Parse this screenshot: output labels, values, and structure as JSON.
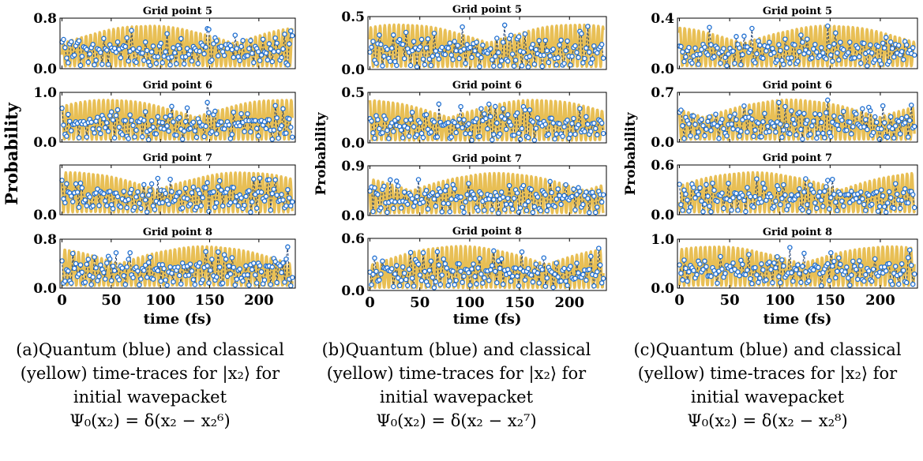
{
  "colors": {
    "quantum": "#1f6fd1",
    "classical": "#e8bf55",
    "marker_fill": "#ffffff"
  },
  "figure": {
    "y_label": "Probability",
    "x_label": "time (fs)",
    "x_ticks": [
      "0",
      "50",
      "100",
      "150",
      "200"
    ],
    "xlim": [
      -2,
      237
    ]
  },
  "panels": [
    {
      "caption": {
        "line1": "(a)Quantum (blue) and classical",
        "line2_pre": "(yellow) time-traces for ",
        "ket": "|x₂⟩",
        "line2_post": " for",
        "line3": "initial wavepacket",
        "equation": "Ψ₀(x₂) = δ(x₂ − x₂⁶)"
      },
      "subplots": [
        {
          "title": "Grid point 5",
          "ylim": [
            0.0,
            0.8
          ],
          "y_ticks": [
            "0.0",
            "0.8"
          ]
        },
        {
          "title": "Grid point 6",
          "ylim": [
            0.0,
            1.0
          ],
          "y_ticks": [
            "0.0",
            "1.0"
          ]
        },
        {
          "title": "Grid point 7",
          "ylim": [
            0.0,
            0.5
          ],
          "y_ticks": [
            "0.0"
          ]
        },
        {
          "title": "Grid point 8",
          "ylim": [
            0.0,
            0.8
          ],
          "y_ticks": [
            "0.0",
            "0.8"
          ]
        }
      ]
    },
    {
      "caption": {
        "line1": "(b)Quantum (blue) and classical",
        "line2_pre": "(yellow) time-traces for ",
        "ket": "|x₂⟩",
        "line2_post": " for",
        "line3": "initial wavepacket",
        "equation": "Ψ₀(x₂) = δ(x₂ − x₂⁷)"
      },
      "subplots": [
        {
          "title": "Grid point 5",
          "ylim": [
            0.0,
            0.5
          ],
          "y_ticks": [
            "0.0",
            "0.5"
          ]
        },
        {
          "title": "Grid point 6",
          "ylim": [
            0.0,
            0.5
          ],
          "y_ticks": [
            "0.0",
            "0.5"
          ]
        },
        {
          "title": "Grid point 7",
          "ylim": [
            0.0,
            0.9
          ],
          "y_ticks": [
            "0.0",
            "0.9"
          ]
        },
        {
          "title": "Grid point 8",
          "ylim": [
            0.0,
            0.6
          ],
          "y_ticks": [
            "0.0",
            "0.6"
          ]
        }
      ]
    },
    {
      "caption": {
        "line1": "(c)Quantum (blue) and classical",
        "line2_pre": "(yellow) time-traces for ",
        "ket": "|x₂⟩",
        "line2_post": " for",
        "line3": "initial wavepacket",
        "equation": "Ψ₀(x₂) = δ(x₂ − x₂⁸)"
      },
      "subplots": [
        {
          "title": "Grid point 5",
          "ylim": [
            0.0,
            0.4
          ],
          "y_ticks": [
            "0.0",
            "0.4"
          ]
        },
        {
          "title": "Grid point 6",
          "ylim": [
            0.0,
            0.7
          ],
          "y_ticks": [
            "0.0",
            "0.7"
          ]
        },
        {
          "title": "Grid point 7",
          "ylim": [
            0.0,
            0.6
          ],
          "y_ticks": [
            "0.0",
            "0.6"
          ]
        },
        {
          "title": "Grid point 8",
          "ylim": [
            0.0,
            1.0
          ],
          "y_ticks": [
            "0.0",
            "1.0"
          ]
        }
      ]
    }
  ],
  "chart_data": [
    {
      "type": "line",
      "xlabel": "time (fs)",
      "ylabel": "Probability",
      "xlim": [
        -2,
        237
      ],
      "x_ticks": [
        0,
        50,
        100,
        150,
        200
      ],
      "series": [
        {
          "name": "Quantum (blue)",
          "color": "#1f6fd1"
        },
        {
          "name": "classical (yellow)",
          "color": "#e8bf55"
        }
      ],
      "subplots": [
        {
          "title": "Grid point 5",
          "ylim": [
            0.0,
            0.8
          ]
        },
        {
          "title": "Grid point 6",
          "ylim": [
            0.0,
            1.0
          ]
        },
        {
          "title": "Grid point 7",
          "ylim": [
            0.0,
            0.5
          ]
        },
        {
          "title": "Grid point 8",
          "ylim": [
            0.0,
            0.8
          ]
        }
      ]
    },
    {
      "type": "line",
      "xlabel": "time (fs)",
      "ylabel": "Probability",
      "xlim": [
        -2,
        237
      ],
      "x_ticks": [
        0,
        50,
        100,
        150,
        200
      ],
      "series": [
        {
          "name": "Quantum (blue)",
          "color": "#1f6fd1"
        },
        {
          "name": "classical (yellow)",
          "color": "#e8bf55"
        }
      ],
      "subplots": [
        {
          "title": "Grid point 5",
          "ylim": [
            0.0,
            0.5
          ]
        },
        {
          "title": "Grid point 6",
          "ylim": [
            0.0,
            0.5
          ]
        },
        {
          "title": "Grid point 7",
          "ylim": [
            0.0,
            0.9
          ]
        },
        {
          "title": "Grid point 8",
          "ylim": [
            0.0,
            0.6
          ]
        }
      ]
    },
    {
      "type": "line",
      "xlabel": "time (fs)",
      "ylabel": "Probability",
      "xlim": [
        -2,
        237
      ],
      "x_ticks": [
        0,
        50,
        100,
        150,
        200
      ],
      "series": [
        {
          "name": "Quantum (blue)",
          "color": "#1f6fd1"
        },
        {
          "name": "classical (yellow)",
          "color": "#e8bf55"
        }
      ],
      "subplots": [
        {
          "title": "Grid point 5",
          "ylim": [
            0.0,
            0.4
          ]
        },
        {
          "title": "Grid point 6",
          "ylim": [
            0.0,
            0.7
          ]
        },
        {
          "title": "Grid point 7",
          "ylim": [
            0.0,
            0.6
          ]
        },
        {
          "title": "Grid point 8",
          "ylim": [
            0.0,
            1.0
          ]
        }
      ]
    }
  ]
}
